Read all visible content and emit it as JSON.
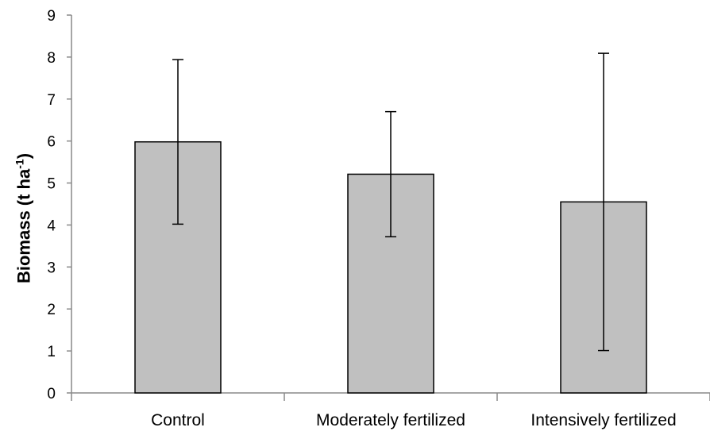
{
  "chart_data": {
    "type": "bar",
    "categories": [
      "Control",
      "Moderately fertilized",
      "Intensively fertilized"
    ],
    "values": [
      5.98,
      5.21,
      4.55
    ],
    "error_low": [
      4.02,
      3.72,
      1.01
    ],
    "error_high": [
      7.94,
      6.7,
      8.09
    ],
    "ylabel": {
      "main": "Biomass (t ha",
      "sup": "-1",
      "close": ")"
    },
    "ylim": [
      0,
      9
    ],
    "yticks": [
      "0",
      "1",
      "2",
      "3",
      "4",
      "5",
      "6",
      "7",
      "8",
      "9"
    ],
    "grid": false,
    "legend": "none",
    "colors": {
      "bar": "#c0c0c0",
      "bar_edge": "#000000",
      "axis": "#898989",
      "error": "#000000"
    }
  }
}
